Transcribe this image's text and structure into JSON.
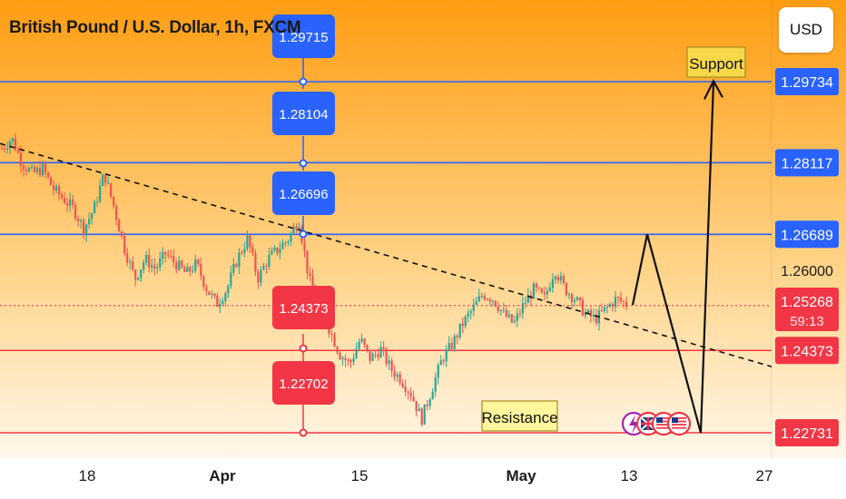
{
  "header": {
    "symbol_title": "British Pound / U.S. Dollar, 1h, FXCM",
    "currency_button": "USD"
  },
  "colors": {
    "bg_top": "#ff9d12",
    "bg_bottom": "#ffffff",
    "blue": "#2962ff",
    "red": "#f23645",
    "candle_up": "#26a69a",
    "candle_down": "#ef5350"
  },
  "annotations": {
    "support_label": "Support",
    "resistance_label": "Resistance"
  },
  "chart_data": {
    "type": "candlestick",
    "title": "British Pound / U.S. Dollar, 1h, FXCM",
    "x_axis_labels": [
      "18",
      "Apr",
      "15",
      "May",
      "13",
      "27"
    ],
    "price_scale_labels": [
      "1.26000"
    ],
    "price_label": "1.25268",
    "countdown_label": "59:13",
    "horizontal_levels": [
      {
        "value": 1.29734,
        "label": "1.29734",
        "color": "blue"
      },
      {
        "value": 1.28117,
        "label": "1.28117",
        "color": "blue"
      },
      {
        "value": 1.26689,
        "label": "1.26689",
        "color": "blue"
      },
      {
        "value": 1.24373,
        "label": "1.24373",
        "color": "red"
      },
      {
        "value": 1.22731,
        "label": "1.22731",
        "color": "red"
      }
    ],
    "target_labels": [
      {
        "label": "1.29715",
        "color": "blue"
      },
      {
        "label": "1.28104",
        "color": "blue"
      },
      {
        "label": "1.26696",
        "color": "blue"
      },
      {
        "label": "1.24373",
        "color": "red"
      },
      {
        "label": "1.22702",
        "color": "red"
      }
    ],
    "ylim": [
      1.215,
      1.305
    ],
    "price_path": [
      1.284,
      1.286,
      1.281,
      1.279,
      1.28,
      1.276,
      1.274,
      1.272,
      1.268,
      1.272,
      1.279,
      1.272,
      1.264,
      1.258,
      1.262,
      1.26,
      1.263,
      1.261,
      1.259,
      1.261,
      1.256,
      1.253,
      1.256,
      1.262,
      1.266,
      1.258,
      1.262,
      1.264,
      1.266,
      1.27,
      1.258,
      1.252,
      1.248,
      1.243,
      1.241,
      1.246,
      1.242,
      1.244,
      1.24,
      1.238,
      1.235,
      1.23,
      1.236,
      1.242,
      1.245,
      1.249,
      1.252,
      1.255,
      1.254,
      1.251,
      1.249,
      1.253,
      1.256,
      1.254,
      1.26,
      1.256,
      1.254,
      1.251,
      1.25,
      1.252,
      1.254,
      1.253
    ],
    "trend_line_points": [
      [
        1.285
      ],
      [
        1.2405
      ]
    ],
    "projection_path": [
      1.2528,
      1.2669,
      1.2273,
      1.2971
    ]
  }
}
